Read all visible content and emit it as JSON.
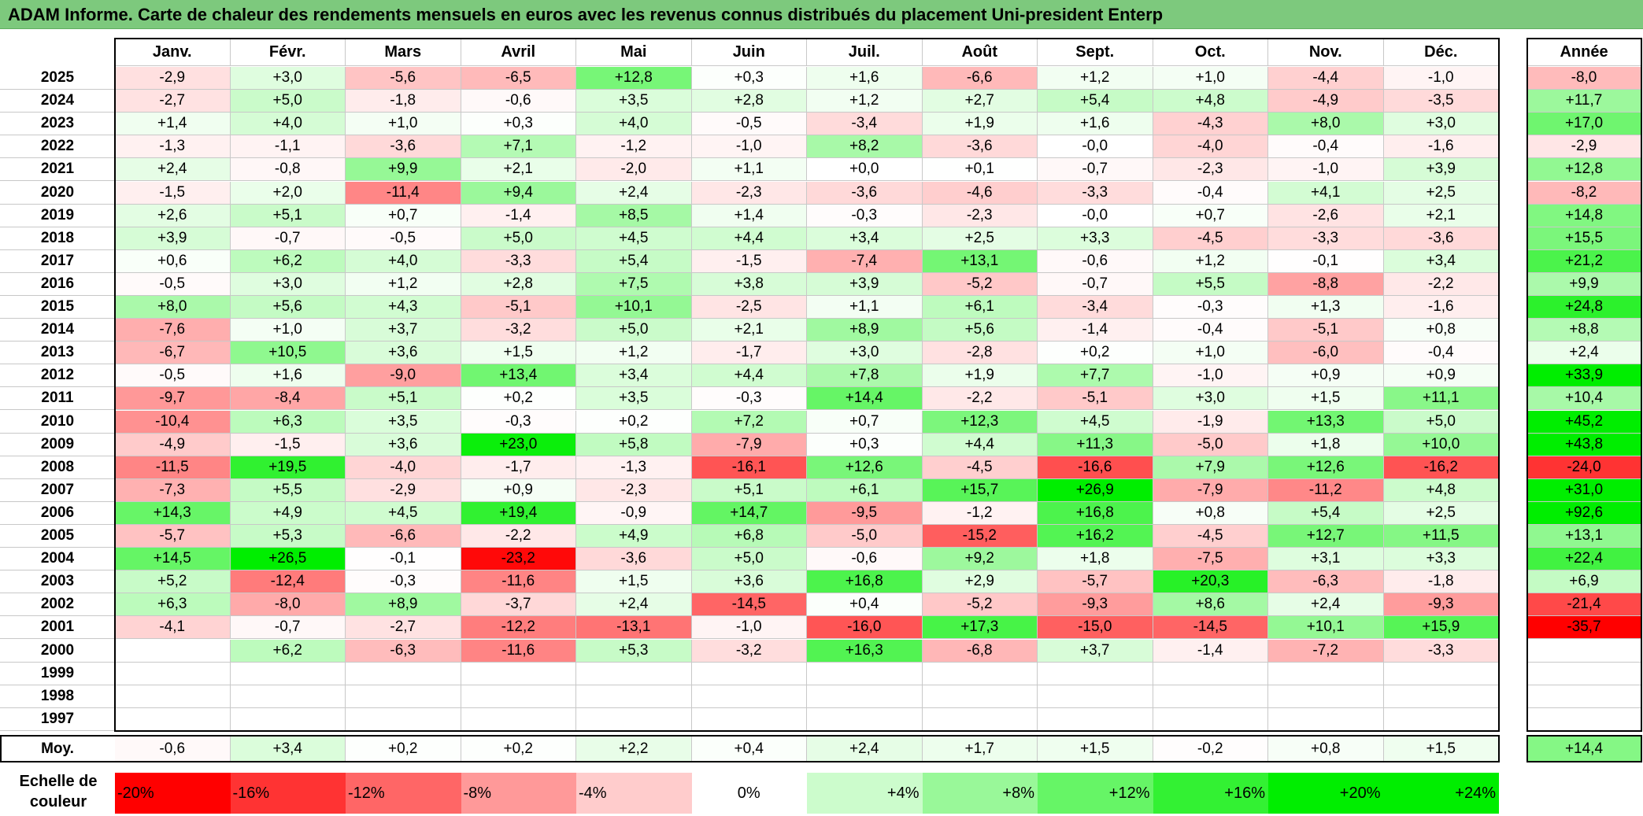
{
  "title": "ADAM Informe. Carte de chaleur des rendements mensuels en euros avec les revenus connus distribués du placement Uni-president Enterp",
  "chart_data": {
    "type": "heatmap",
    "months": [
      "Janv.",
      "Févr.",
      "Mars",
      "Avril",
      "Mai",
      "Juin",
      "Juil.",
      "Août",
      "Sept.",
      "Oct.",
      "Nov.",
      "Déc."
    ],
    "year_header": "Année",
    "rows": [
      {
        "year": "2025",
        "values": [
          "-2,9",
          "+3,0",
          "-5,6",
          "-6,5",
          "+12,8",
          "+0,3",
          "+1,6",
          "-6,6",
          "+1,2",
          "+1,0",
          "-4,4",
          "-1,0"
        ],
        "annual": "-8,0"
      },
      {
        "year": "2024",
        "values": [
          "-2,7",
          "+5,0",
          "-1,8",
          "-0,6",
          "+3,5",
          "+2,8",
          "+1,2",
          "+2,7",
          "+5,4",
          "+4,8",
          "-4,9",
          "-3,5"
        ],
        "annual": "+11,7"
      },
      {
        "year": "2023",
        "values": [
          "+1,4",
          "+4,0",
          "+1,0",
          "+0,3",
          "+4,0",
          "-0,5",
          "-3,4",
          "+1,9",
          "+1,6",
          "-4,3",
          "+8,0",
          "+3,0"
        ],
        "annual": "+17,0"
      },
      {
        "year": "2022",
        "values": [
          "-1,3",
          "-1,1",
          "-3,6",
          "+7,1",
          "-1,2",
          "-1,0",
          "+8,2",
          "-3,6",
          "-0,0",
          "-4,0",
          "-0,4",
          "-1,6"
        ],
        "annual": "-2,9"
      },
      {
        "year": "2021",
        "values": [
          "+2,4",
          "-0,8",
          "+9,9",
          "+2,1",
          "-2,0",
          "+1,1",
          "+0,0",
          "+0,1",
          "-0,7",
          "-2,3",
          "-1,0",
          "+3,9"
        ],
        "annual": "+12,8"
      },
      {
        "year": "2020",
        "values": [
          "-1,5",
          "+2,0",
          "-11,4",
          "+9,4",
          "+2,4",
          "-2,3",
          "-3,6",
          "-4,6",
          "-3,3",
          "-0,4",
          "+4,1",
          "+2,5"
        ],
        "annual": "-8,2"
      },
      {
        "year": "2019",
        "values": [
          "+2,6",
          "+5,1",
          "+0,7",
          "-1,4",
          "+8,5",
          "+1,4",
          "-0,3",
          "-2,3",
          "-0,0",
          "+0,7",
          "-2,6",
          "+2,1"
        ],
        "annual": "+14,8"
      },
      {
        "year": "2018",
        "values": [
          "+3,9",
          "-0,7",
          "-0,5",
          "+5,0",
          "+4,5",
          "+4,4",
          "+3,4",
          "+2,5",
          "+3,3",
          "-4,5",
          "-3,3",
          "-3,6"
        ],
        "annual": "+15,5"
      },
      {
        "year": "2017",
        "values": [
          "+0,6",
          "+6,2",
          "+4,0",
          "-3,3",
          "+5,4",
          "-1,5",
          "-7,4",
          "+13,1",
          "-0,6",
          "+1,2",
          "-0,1",
          "+3,4"
        ],
        "annual": "+21,2"
      },
      {
        "year": "2016",
        "values": [
          "-0,5",
          "+3,0",
          "+1,2",
          "+2,8",
          "+7,5",
          "+3,8",
          "+3,9",
          "-5,2",
          "-0,7",
          "+5,5",
          "-8,8",
          "-2,2"
        ],
        "annual": "+9,9"
      },
      {
        "year": "2015",
        "values": [
          "+8,0",
          "+5,6",
          "+4,3",
          "-5,1",
          "+10,1",
          "-2,5",
          "+1,1",
          "+6,1",
          "-3,4",
          "-0,3",
          "+1,3",
          "-1,6"
        ],
        "annual": "+24,8"
      },
      {
        "year": "2014",
        "values": [
          "-7,6",
          "+1,0",
          "+3,7",
          "-3,2",
          "+5,0",
          "+2,1",
          "+8,9",
          "+5,6",
          "-1,4",
          "-0,4",
          "-5,1",
          "+0,8"
        ],
        "annual": "+8,8"
      },
      {
        "year": "2013",
        "values": [
          "-6,7",
          "+10,5",
          "+3,6",
          "+1,5",
          "+1,2",
          "-1,7",
          "+3,0",
          "-2,8",
          "+0,2",
          "+1,0",
          "-6,0",
          "-0,4"
        ],
        "annual": "+2,4"
      },
      {
        "year": "2012",
        "values": [
          "-0,5",
          "+1,6",
          "-9,0",
          "+13,4",
          "+3,4",
          "+4,4",
          "+7,8",
          "+1,9",
          "+7,7",
          "-1,0",
          "+0,9",
          "+0,9"
        ],
        "annual": "+33,9"
      },
      {
        "year": "2011",
        "values": [
          "-9,7",
          "-8,4",
          "+5,1",
          "+0,2",
          "+3,5",
          "-0,3",
          "+14,4",
          "-2,2",
          "-5,1",
          "+3,0",
          "+1,5",
          "+11,1"
        ],
        "annual": "+10,4"
      },
      {
        "year": "2010",
        "values": [
          "-10,4",
          "+6,3",
          "+3,5",
          "-0,3",
          "+0,2",
          "+7,2",
          "+0,7",
          "+12,3",
          "+4,5",
          "-1,9",
          "+13,3",
          "+5,0"
        ],
        "annual": "+45,2"
      },
      {
        "year": "2009",
        "values": [
          "-4,9",
          "-1,5",
          "+3,6",
          "+23,0",
          "+5,8",
          "-7,9",
          "+0,3",
          "+4,4",
          "+11,3",
          "-5,0",
          "+1,8",
          "+10,0"
        ],
        "annual": "+43,8"
      },
      {
        "year": "2008",
        "values": [
          "-11,5",
          "+19,5",
          "-4,0",
          "-1,7",
          "-1,3",
          "-16,1",
          "+12,6",
          "-4,5",
          "-16,6",
          "+7,9",
          "+12,6",
          "-16,2"
        ],
        "annual": "-24,0"
      },
      {
        "year": "2007",
        "values": [
          "-7,3",
          "+5,5",
          "-2,9",
          "+0,9",
          "-2,3",
          "+5,1",
          "+6,1",
          "+15,7",
          "+26,9",
          "-7,9",
          "-11,2",
          "+4,8"
        ],
        "annual": "+31,0"
      },
      {
        "year": "2006",
        "values": [
          "+14,3",
          "+4,9",
          "+4,5",
          "+19,4",
          "-0,9",
          "+14,7",
          "-9,5",
          "-1,2",
          "+16,8",
          "+0,8",
          "+5,4",
          "+2,5"
        ],
        "annual": "+92,6"
      },
      {
        "year": "2005",
        "values": [
          "-5,7",
          "+5,3",
          "-6,6",
          "-2,2",
          "+4,9",
          "+6,8",
          "-5,0",
          "-15,2",
          "+16,2",
          "-4,5",
          "+12,7",
          "+11,5"
        ],
        "annual": "+13,1"
      },
      {
        "year": "2004",
        "values": [
          "+14,5",
          "+26,5",
          "-0,1",
          "-23,2",
          "-3,6",
          "+5,0",
          "-0,6",
          "+9,2",
          "+1,8",
          "-7,5",
          "+3,1",
          "+3,3"
        ],
        "annual": "+22,4"
      },
      {
        "year": "2003",
        "values": [
          "+5,2",
          "-12,4",
          "-0,3",
          "-11,6",
          "+1,5",
          "+3,6",
          "+16,8",
          "+2,9",
          "-5,7",
          "+20,3",
          "-6,3",
          "-1,8"
        ],
        "annual": "+6,9"
      },
      {
        "year": "2002",
        "values": [
          "+6,3",
          "-8,0",
          "+8,9",
          "-3,7",
          "+2,4",
          "-14,5",
          "+0,4",
          "-5,2",
          "-9,3",
          "+8,6",
          "+2,4",
          "-9,3"
        ],
        "annual": "-21,4"
      },
      {
        "year": "2001",
        "values": [
          "-4,1",
          "-0,7",
          "-2,7",
          "-12,2",
          "-13,1",
          "-1,0",
          "-16,0",
          "+17,3",
          "-15,0",
          "-14,5",
          "+10,1",
          "+15,9"
        ],
        "annual": "-35,7"
      },
      {
        "year": "2000",
        "values": [
          "",
          "+6,2",
          "-6,3",
          "-11,6",
          "+5,3",
          "-3,2",
          "+16,3",
          "-6,8",
          "+3,7",
          "-1,4",
          "-7,2",
          "-3,3"
        ],
        "annual": ""
      },
      {
        "year": "1999",
        "values": [
          "",
          "",
          "",
          "",
          "",
          "",
          "",
          "",
          "",
          "",
          "",
          ""
        ],
        "annual": ""
      },
      {
        "year": "1998",
        "values": [
          "",
          "",
          "",
          "",
          "",
          "",
          "",
          "",
          "",
          "",
          "",
          ""
        ],
        "annual": ""
      },
      {
        "year": "1997",
        "values": [
          "",
          "",
          "",
          "",
          "",
          "",
          "",
          "",
          "",
          "",
          "",
          ""
        ],
        "annual": ""
      }
    ],
    "average": {
      "label": "Moy.",
      "values": [
        "-0,6",
        "+3,4",
        "+0,2",
        "+0,2",
        "+2,2",
        "+0,4",
        "+2,4",
        "+1,7",
        "+1,5",
        "-0,2",
        "+0,8",
        "+1,5"
      ],
      "annual": "+14,4"
    },
    "color_scale": {
      "label_line1": "Echelle de",
      "label_line2": "couleur",
      "stops": [
        "-20%",
        "-16%",
        "-12%",
        "-8%",
        "-4%",
        "0%",
        "+4%",
        "+8%",
        "+12%",
        "+16%",
        "+20%",
        "+24%"
      ],
      "negative_color": "#ff0000",
      "positive_color": "#00ee00",
      "neutral_color": "#ffffff"
    }
  }
}
